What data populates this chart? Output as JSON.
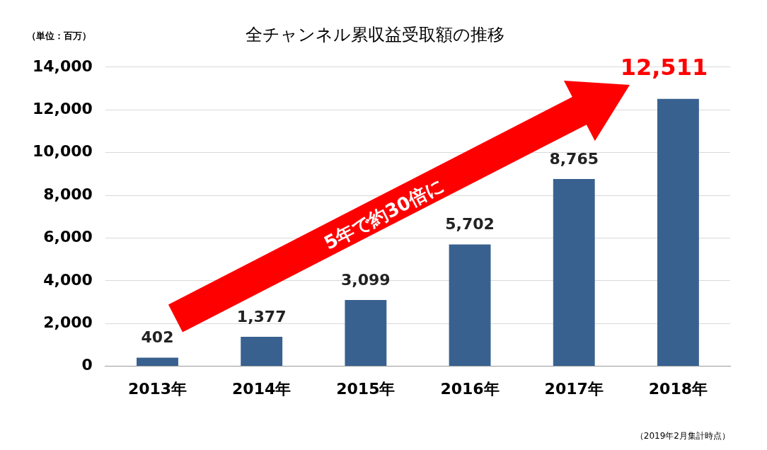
{
  "chart_data": {
    "type": "bar",
    "title": "全チャンネル累収益受取額の推移",
    "ylabel": "（単位：百万）",
    "categories": [
      "2013年",
      "2014年",
      "2015年",
      "2016年",
      "2017年",
      "2018年"
    ],
    "values": [
      402,
      1377,
      3099,
      5702,
      8765,
      12511
    ],
    "color": "#386190",
    "ylim": [
      0,
      14000
    ],
    "yticks": [
      {
        "value": 0,
        "label": "0"
      },
      {
        "value": 2000,
        "label": "2,000"
      },
      {
        "value": 4000,
        "label": "4,000"
      },
      {
        "value": 6000,
        "label": "6,000"
      },
      {
        "value": 8000,
        "label": "8,000"
      },
      {
        "value": 10000,
        "label": "10,000"
      },
      {
        "value": 12000,
        "label": "12,000"
      },
      {
        "value": 14000,
        "label": "14,000"
      }
    ],
    "value_labels": [
      "402",
      "1,377",
      "3,099",
      "5,702",
      "8,765",
      "12,511"
    ],
    "grid": "y",
    "annotations": [
      "（2019年2月集計時点）",
      "5年で約30倍に"
    ]
  }
}
